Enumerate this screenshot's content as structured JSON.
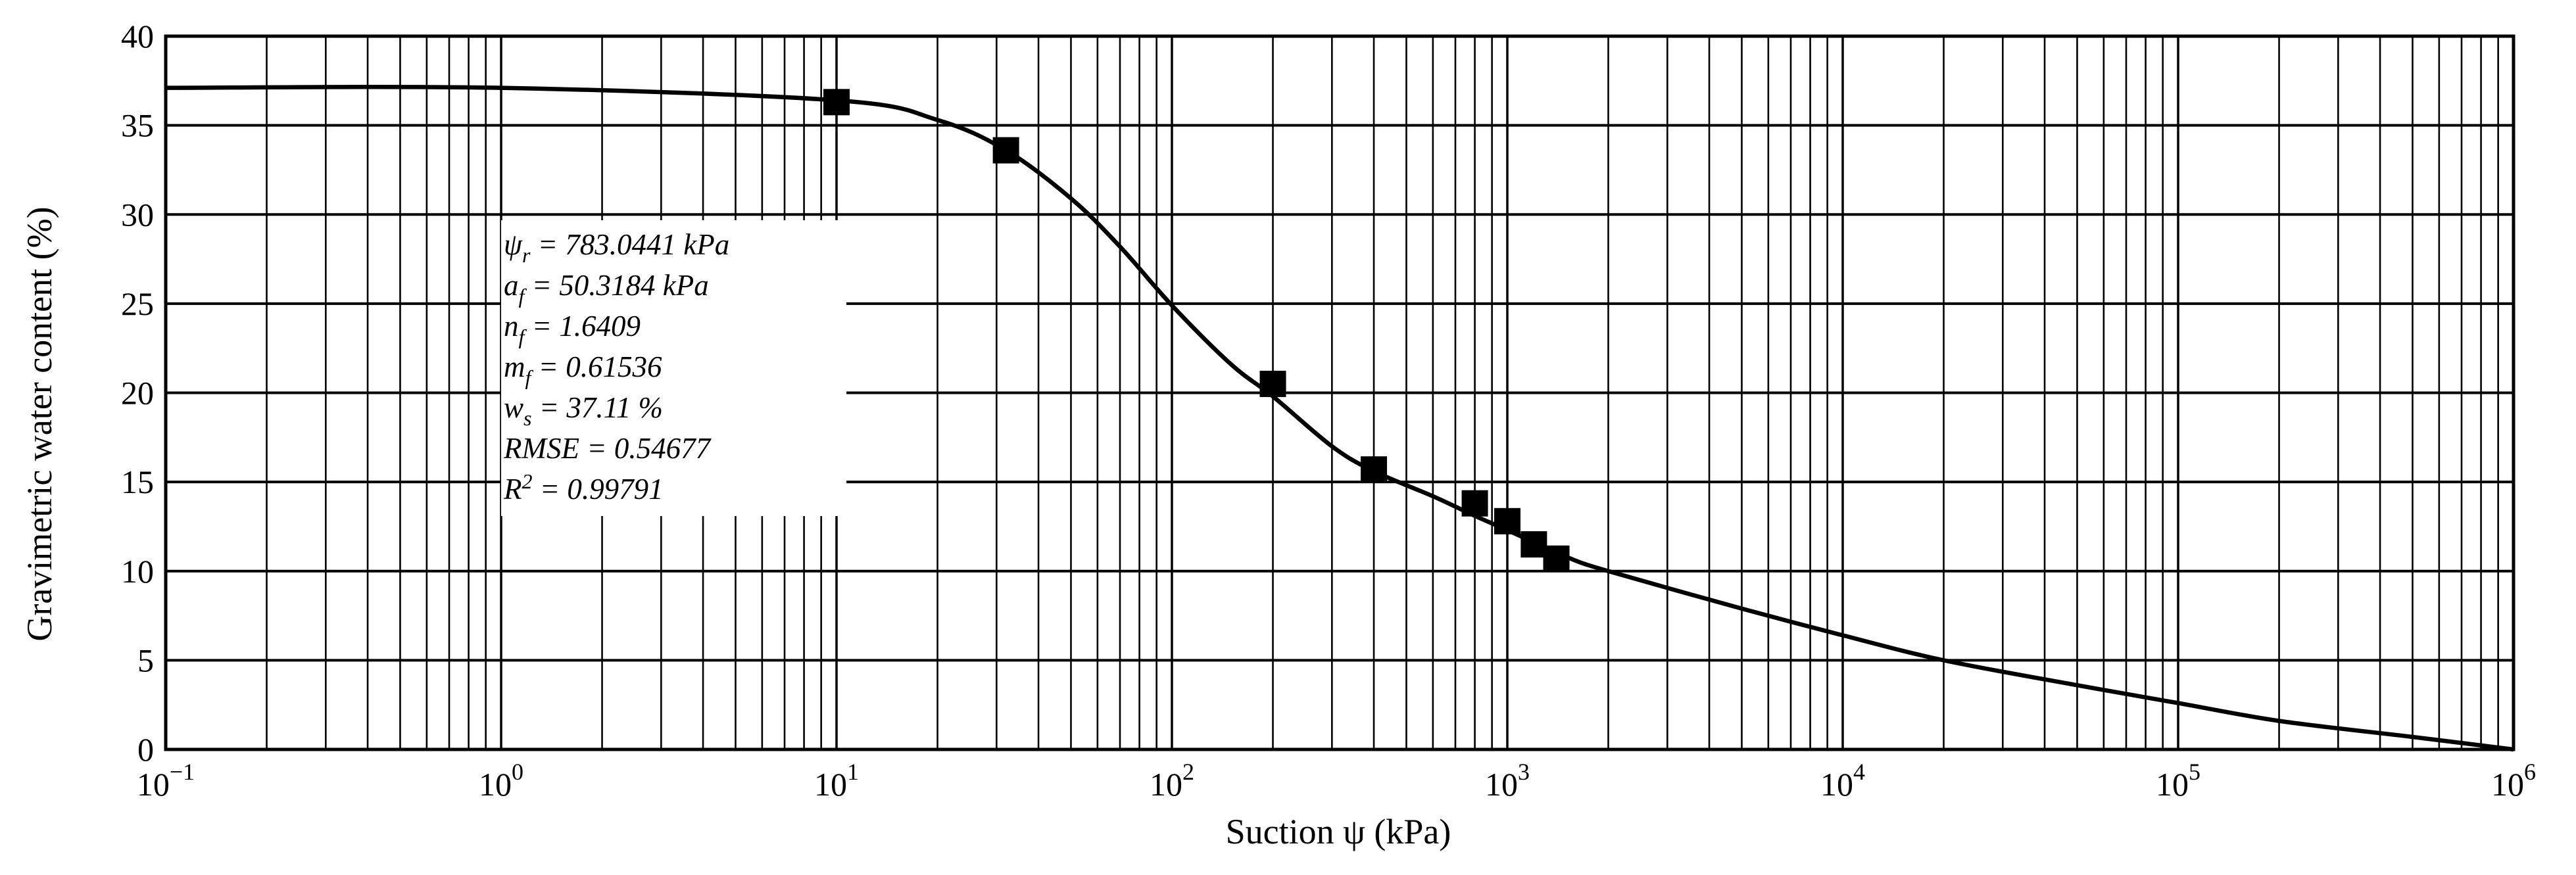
{
  "chart_data": {
    "type": "scatter",
    "xscale": "log",
    "xlim": [
      0.1,
      1000000
    ],
    "ylim": [
      0,
      40
    ],
    "grid": true,
    "xlabel": "Suction ψ (kPa)",
    "ylabel": "Gravimetric water content (%)",
    "x_ticks": [
      {
        "base": "10",
        "exp": "−1",
        "value": 0.1
      },
      {
        "base": "10",
        "exp": "0",
        "value": 1
      },
      {
        "base": "10",
        "exp": "1",
        "value": 10
      },
      {
        "base": "10",
        "exp": "2",
        "value": 100
      },
      {
        "base": "10",
        "exp": "3",
        "value": 1000
      },
      {
        "base": "10",
        "exp": "4",
        "value": 10000
      },
      {
        "base": "10",
        "exp": "5",
        "value": 100000
      },
      {
        "base": "10",
        "exp": "6",
        "value": 1000000
      }
    ],
    "y_ticks": [
      0,
      5,
      10,
      15,
      20,
      25,
      30,
      35,
      40
    ],
    "series": [
      {
        "kind": "points",
        "marker": "square",
        "x": [
          10,
          32,
          200,
          400,
          800,
          1000,
          1200,
          1400
        ],
        "y": [
          36.3,
          33.6,
          20.5,
          15.7,
          13.8,
          12.8,
          11.5,
          10.7
        ]
      },
      {
        "kind": "line",
        "x": [
          0.1,
          1,
          10,
          20,
          32,
          50,
          70,
          100,
          150,
          200,
          300,
          400,
          600,
          800,
          1000,
          1500,
          2000,
          5000,
          10000,
          20000,
          50000,
          100000,
          200000,
          500000,
          1000000
        ],
        "y": [
          37.1,
          37.1,
          36.4,
          35.3,
          33.6,
          30.9,
          28.2,
          24.9,
          21.6,
          19.8,
          17.0,
          15.6,
          14.2,
          13.1,
          12.3,
          10.8,
          10.0,
          7.9,
          6.4,
          5.0,
          3.6,
          2.6,
          1.6,
          0.7,
          0.0
        ]
      }
    ],
    "annotation": [
      {
        "sym": "ψ",
        "sub": "r",
        "rest": " = 783.0441 kPa"
      },
      {
        "sym": "a",
        "sub": "f",
        "rest": " = 50.3184 kPa"
      },
      {
        "sym": "n",
        "sub": "f",
        "rest": " = 1.6409"
      },
      {
        "sym": "m",
        "sub": "f",
        "rest": " = 0.61536"
      },
      {
        "sym": "w",
        "sub": "s",
        "rest": " = 37.11 %"
      },
      {
        "sym": "RMSE",
        "rest": " = 0.54677"
      },
      {
        "sym": "R",
        "sup": "2",
        "rest": " = 0.99791"
      }
    ],
    "colors": {
      "line": "#000000",
      "marker": "#000000",
      "grid": "#000000",
      "background": "#ffffff"
    }
  }
}
